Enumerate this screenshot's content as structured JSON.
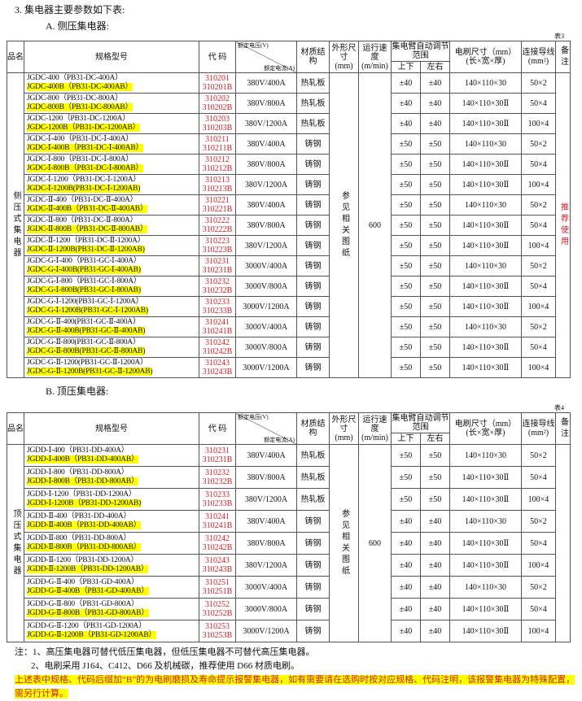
{
  "heading": "3.  集电器主要参数如下表:",
  "colors": {
    "code": "#d0202a",
    "highlight": "#ffff00",
    "note": "#d0202a"
  },
  "header": {
    "name": "品名",
    "model": "规格型号",
    "code": "代 码",
    "voltage": "额定电压(V)",
    "current": "额定电流(A)",
    "material": "材质结构",
    "dim": "外形尺寸",
    "dim_unit": "(mm)",
    "speed": "运行速度",
    "speed_unit": "(m/min)",
    "range": "集电臂自动调节范围",
    "ud": "上下",
    "lr": "左右",
    "brush": "电刷尺寸（mm）",
    "brush_unit": "(长×宽×厚)",
    "wire": "连接导线",
    "wire_unit": "(mm²)",
    "remark": "备注"
  },
  "tableA": {
    "title": "A.  侧压集电器:",
    "table_no": "表3",
    "category": "侧压式集电器",
    "dim": "参见相关图纸",
    "speed": "600",
    "remark": "推荐使用",
    "rows": [
      {
        "m1": "JGDC-400（PB31-DC-400A）",
        "m2": "JGDC-400B（PB31-DC-400AB）",
        "c1": "310201",
        "c2": "310201B",
        "rating": "380V/400A",
        "mat": "热轧板",
        "ud": "±40",
        "lr": "±40",
        "brush": "140×110×30",
        "wire": "50×2"
      },
      {
        "m1": "JGDC-800（PB31-DC-800A）",
        "m2": "JGDC-800B（PB31-DC-800AB）",
        "c1": "310202",
        "c2": "310202B",
        "rating": "380V/800A",
        "mat": "热轧板",
        "ud": "±40",
        "lr": "±40",
        "brush": "140×110×30Ⅱ",
        "wire": "50×4"
      },
      {
        "m1": "JGDC-1200（PB31-DC-1200A）",
        "m2": "JGDC-1200B（PB31-DC-1200AB）",
        "c1": "310203",
        "c2": "310203B",
        "rating": "380V/1200A",
        "mat": "热轧板",
        "ud": "±40",
        "lr": "±40",
        "brush": "140×110×30Ⅱ",
        "wire": "100×4"
      },
      {
        "m1": "JGDC-Ⅰ-400（PB31-DC-Ⅰ-400A）",
        "m2": "JGDC-Ⅰ-400B（PB31-DC-Ⅰ-400AB）",
        "c1": "310211",
        "c2": "310211B",
        "rating": "380V/400A",
        "mat": "铸钢",
        "ud": "±50",
        "lr": "±50",
        "brush": "140×110×30",
        "wire": "50×2"
      },
      {
        "m1": "JGDC-Ⅰ-800（PB31-DC-Ⅰ-800A）",
        "m2": "JGDC-Ⅰ-800B（PB31-DC-Ⅰ-800AB）",
        "c1": "310212",
        "c2": "310212B",
        "rating": "380V/800A",
        "mat": "铸钢",
        "ud": "±50",
        "lr": "±50",
        "brush": "140×110×30Ⅱ",
        "wire": "50×4"
      },
      {
        "m1": "JGDC-Ⅰ-1200（PB31-DC-Ⅰ-1200A）",
        "m2": "JGDC-Ⅰ-1200B(PB31-DC-Ⅰ-1200AB)",
        "c1": "310213",
        "c2": "310213B",
        "rating": "380V/1200A",
        "mat": "铸钢",
        "ud": "±50",
        "lr": "±50",
        "brush": "140×110×30Ⅱ",
        "wire": "100×4"
      },
      {
        "m1": "JGDC-Ⅱ-400（PB31-DC-Ⅱ-400A）",
        "m2": "JGDC-Ⅱ-400B（PB31-DC-Ⅱ-400AB）",
        "c1": "310221",
        "c2": "310221B",
        "rating": "380V/400A",
        "mat": "铸钢",
        "ud": "±50",
        "lr": "±50",
        "brush": "140×110×30",
        "wire": "50×2"
      },
      {
        "m1": "JGDC-Ⅱ-800（PB31-DC-Ⅱ-800A）",
        "m2": "JGDC-Ⅱ-800B（PB31-DC-Ⅱ-800AB）",
        "c1": "310222",
        "c2": "310222B",
        "rating": "380V/800A",
        "mat": "铸钢",
        "ud": "±50",
        "lr": "±50",
        "brush": "140×110×30Ⅱ",
        "wire": "50×4"
      },
      {
        "m1": "JGDC-Ⅱ-1200（PB31-DC-Ⅱ-1200A）",
        "m2": "JGDC-Ⅱ-1200B(PB31-DC-Ⅱ-1200AB)",
        "c1": "310223",
        "c2": "310223B",
        "rating": "380V/1200A",
        "mat": "铸钢",
        "ud": "±50",
        "lr": "±50",
        "brush": "140×110×30Ⅱ",
        "wire": "100×4"
      },
      {
        "m1": "JGDC-G-Ⅰ-400（PB31-GC-Ⅰ-400A）",
        "m2": "JGDC-G-Ⅰ-400B(PB31-GC-Ⅰ-400AB)",
        "c1": "310231",
        "c2": "310231B",
        "rating": "3000V/400A",
        "mat": "铸钢",
        "ud": "±50",
        "lr": "±50",
        "brush": "140×110×30",
        "wire": "50×2"
      },
      {
        "m1": "JGDC-G-Ⅰ-800（PB31-GC-Ⅰ-800A）",
        "m2": "JGDC-G-Ⅰ-800B(PB31-GC-Ⅰ-800AB)",
        "c1": "310232",
        "c2": "310232B",
        "rating": "3000V/800A",
        "mat": "铸钢",
        "ud": "±50",
        "lr": "±50",
        "brush": "140×110×30Ⅱ",
        "wire": "50×4"
      },
      {
        "m1": "JGDC-G-Ⅰ-1200(PB31-GC-Ⅰ-1200A）",
        "m2": "JGDC-G-Ⅰ-1200B(PB31-GC-Ⅰ-1200AB)",
        "c1": "310233",
        "c2": "310233B",
        "rating": "3000V/1200A",
        "mat": "铸钢",
        "ud": "±50",
        "lr": "±50",
        "brush": "140×110×30Ⅱ",
        "wire": "100×4"
      },
      {
        "m1": "JGDC-G-Ⅱ-400(PB31-GC-Ⅱ-400A）",
        "m2": "JGDC-G-Ⅱ-400B(PB31-GC-Ⅱ-400AB)",
        "c1": "310241",
        "c2": "310241B",
        "rating": "3000V/400A",
        "mat": "铸钢",
        "ud": "±50",
        "lr": "±50",
        "brush": "140×110×30",
        "wire": "50×2"
      },
      {
        "m1": "JGDC-G-Ⅱ-800(PB31-GC-Ⅱ-800A）",
        "m2": "JGDC-G-Ⅱ-800B(PB31-GC-Ⅱ-800AB)",
        "c1": "310242",
        "c2": "310242B",
        "rating": "3000V/800A",
        "mat": "铸钢",
        "ud": "±50",
        "lr": "±50",
        "brush": "140×110×30Ⅱ",
        "wire": "50×4"
      },
      {
        "m1": "JGDC-G-Ⅱ-1200(PB31-GC-Ⅱ-1200A）",
        "m2": "JGDC-G-Ⅱ-1200B(PB31-GC-Ⅱ-1200AB)",
        "c1": "310243",
        "c2": "310243B",
        "rating": "3000V/1200A",
        "mat": "铸钢",
        "ud": "±50",
        "lr": "±50",
        "brush": "140×110×30Ⅱ",
        "wire": "100×4"
      }
    ]
  },
  "tableB": {
    "title": "B.  顶压集电器:",
    "table_no": "表4",
    "category": "顶压式集电器",
    "dim": "参见相关图纸",
    "speed": "600",
    "remark": "",
    "rows": [
      {
        "m1": "JGDD-Ⅰ-400（PB31-DD-400A）",
        "m2": "JGDD-Ⅰ-400B（PB31-DD-400AB）",
        "c1": "310231",
        "c2": "310231B",
        "rating": "380V/400A",
        "mat": "热轧板",
        "ud": "±50",
        "lr": "±50",
        "brush": "140×110×30",
        "wire": "50×2"
      },
      {
        "m1": "JGDD-Ⅰ-800（PB31-DD-800A）",
        "m2": "JGDD-Ⅰ-800B（PB31-DD-800AB）",
        "c1": "310232",
        "c2": "310232B",
        "rating": "380V/800A",
        "mat": "热轧板",
        "ud": "±50",
        "lr": "±50",
        "brush": "140×110×30Ⅱ",
        "wire": "50×4"
      },
      {
        "m1": "JGDD-Ⅰ-1200（PB31-DD-1200A）",
        "m2": "JGDD-Ⅰ-1200B（PB31-DD-1200AB)",
        "c1": "310233",
        "c2": "310233B",
        "rating": "380V/1200A",
        "mat": "热轧板",
        "ud": "±50",
        "lr": "±50",
        "brush": "140×110×30Ⅱ",
        "wire": "100×4"
      },
      {
        "m1": "JGDD-Ⅱ-400（PB31-DD-400A）",
        "m2": "JGDD-Ⅱ-400B（PB31-DD-400AB）",
        "c1": "310241",
        "c2": "310241B",
        "rating": "380V/400A",
        "mat": "铸钢",
        "ud": "±40",
        "lr": "±40",
        "brush": "140×110×30",
        "wire": "50×2"
      },
      {
        "m1": "JGDD-Ⅱ-800（PB31-DD-800A）",
        "m2": "JGDD-Ⅱ-800B（PB31-DD-800AB）",
        "c1": "310242",
        "c2": "310242B",
        "rating": "380V/800A",
        "mat": "铸钢",
        "ud": "±40",
        "lr": "±40",
        "brush": "140×110×30Ⅱ",
        "wire": "50×4"
      },
      {
        "m1": "JGDD-Ⅱ-1200（PB31-DD-1200A）",
        "m2": "JGDD-Ⅱ-1200B（PB31-DD-1200AB）",
        "c1": "310243",
        "c2": "310243B",
        "rating": "380V/1200A",
        "mat": "铸钢",
        "ud": "±40",
        "lr": "±40",
        "brush": "140×110×30Ⅱ",
        "wire": "100×4"
      },
      {
        "m1": "JGDD-G-Ⅱ-400（PB31-GD-400A）",
        "m2": "JGDD-G-Ⅱ-400B（PB31-GD-400AB）",
        "c1": "310251",
        "c2": "310251B",
        "rating": "3000V/400A",
        "mat": "铸钢",
        "ud": "±40",
        "lr": "±40",
        "brush": "140×110×30",
        "wire": "50×2"
      },
      {
        "m1": "JGDD-G-Ⅱ-800（PB31-GD-800A）",
        "m2": "JGDD-G-Ⅱ-800B（PB31-GD-800AB）",
        "c1": "310252",
        "c2": "310252B",
        "rating": "3000V/800A",
        "mat": "铸钢",
        "ud": "±40",
        "lr": "±40",
        "brush": "140×110×30Ⅱ",
        "wire": "50×4"
      },
      {
        "m1": "JGDD-G-Ⅱ-1200（PB31-GD-1200A）",
        "m2": "JGDD-G-Ⅱ-1200B（PB31-GD-1200AB）",
        "c1": "310253",
        "c2": "310253B",
        "rating": "3000V/1200A",
        "mat": "铸钢",
        "ud": "±40",
        "lr": "±40",
        "brush": "140×110×30Ⅱ",
        "wire": "100×4"
      }
    ]
  },
  "notes": {
    "n1": "注：1、高压集电器可替代低压集电器，但低压集电器不可替代高压集电器。",
    "n2": "2、电刷采用 J164、C412、D66 及机械碳，推荐使用 D66 材质电刷。",
    "warning": "上述表中规格、代码后缀加“B”的为电刷磨损及寿命提示报警集电器，如有需要请在选购时按对应规格、代码注明，该报警集电器为特殊配置，需另行计算。"
  }
}
